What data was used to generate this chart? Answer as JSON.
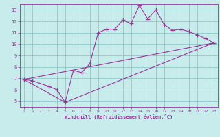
{
  "xlabel": "Windchill (Refroidissement éolien,°C)",
  "background_color": "#c8ecec",
  "line_color": "#993399",
  "xlim": [
    -0.5,
    23.5
  ],
  "ylim": [
    4.5,
    13.5
  ],
  "xticks": [
    0,
    1,
    2,
    3,
    4,
    5,
    6,
    7,
    8,
    9,
    10,
    11,
    12,
    13,
    14,
    15,
    16,
    17,
    18,
    19,
    20,
    21,
    22,
    23
  ],
  "yticks": [
    5,
    6,
    7,
    8,
    9,
    10,
    11,
    12,
    13
  ],
  "series1_x": [
    0,
    1,
    3,
    4,
    5,
    6,
    7,
    8,
    9,
    10,
    11,
    12,
    13,
    14,
    15,
    16,
    17,
    18,
    19,
    20,
    21,
    22,
    23
  ],
  "series1_y": [
    6.9,
    6.8,
    6.3,
    6.0,
    4.9,
    7.7,
    7.5,
    8.3,
    11.0,
    11.3,
    11.3,
    12.1,
    11.8,
    13.4,
    12.2,
    13.0,
    11.7,
    11.2,
    11.3,
    11.1,
    10.8,
    10.5,
    10.1
  ],
  "series2_x": [
    0,
    23
  ],
  "series2_y": [
    6.9,
    10.1
  ],
  "series3_x": [
    0,
    5,
    23
  ],
  "series3_y": [
    6.9,
    4.9,
    10.1
  ],
  "grid_color": "#7fbfbf",
  "font_color": "#993399",
  "tick_fontsize": 4.5,
  "xlabel_fontsize": 5.0
}
